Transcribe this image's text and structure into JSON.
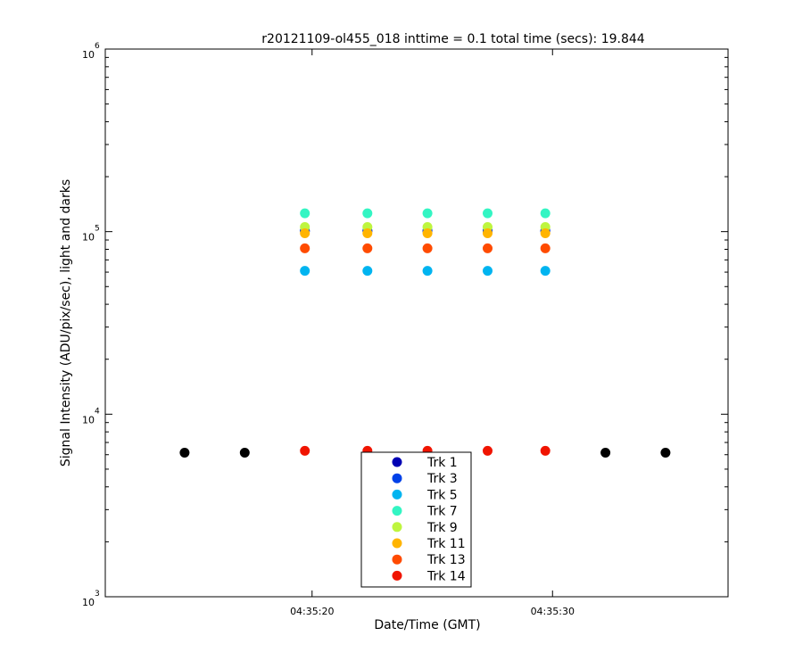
{
  "chart_data": {
    "type": "scatter",
    "title": "r20121109-ol455_018 inttime = 0.1 total time (secs): 19.844",
    "xlabel": "Date/Time (GMT)",
    "ylabel": "Signal Intensity (ADU/pix/sec), light and darks",
    "yscale": "log",
    "ylim": [
      1000,
      1000000
    ],
    "xlim_seconds_after_04_35_00": [
      11.4,
      37.3
    ],
    "x_ticks": [
      {
        "t": 20,
        "label": "04:35:20"
      },
      {
        "t": 30,
        "label": "04:35:30"
      }
    ],
    "y_ticks": [
      {
        "value": 1000,
        "base": "10",
        "exp": "3"
      },
      {
        "value": 10000,
        "base": "10",
        "exp": "4"
      },
      {
        "value": 100000,
        "base": "10",
        "exp": "5"
      },
      {
        "value": 1000000,
        "base": "10",
        "exp": "6"
      }
    ],
    "grid": false,
    "legend_position": "bottom-center",
    "series": [
      {
        "name": "Trk 1",
        "color": "#0000b4",
        "x": [
          19.7,
          22.3,
          24.8,
          27.3,
          29.7
        ],
        "y": [
          101000,
          101000,
          101000,
          101000,
          101000
        ]
      },
      {
        "name": "Trk 3",
        "color": "#0041e8",
        "x": [
          19.7,
          22.3,
          24.8,
          27.3,
          29.7
        ],
        "y": [
          101000,
          101000,
          101000,
          101000,
          101000
        ]
      },
      {
        "name": "Trk 5",
        "color": "#00b4f0",
        "x": [
          19.7,
          22.3,
          24.8,
          27.3,
          29.7
        ],
        "y": [
          61000,
          61000,
          61000,
          61000,
          61000
        ]
      },
      {
        "name": "Trk 7",
        "color": "#33f5c3",
        "x": [
          19.7,
          22.3,
          24.8,
          27.3,
          29.7
        ],
        "y": [
          126000,
          126000,
          126000,
          126000,
          126000
        ]
      },
      {
        "name": "Trk 9",
        "color": "#bef53f",
        "x": [
          19.7,
          22.3,
          24.8,
          27.3,
          29.7
        ],
        "y": [
          106000,
          106000,
          106000,
          106000,
          106000
        ]
      },
      {
        "name": "Trk 11",
        "color": "#ffb400",
        "x": [
          19.7,
          22.3,
          24.8,
          27.3,
          29.7
        ],
        "y": [
          98000,
          98000,
          98000,
          98000,
          98000
        ]
      },
      {
        "name": "Trk 13",
        "color": "#ff4b00",
        "x": [
          19.7,
          22.3,
          24.8,
          27.3,
          29.7
        ],
        "y": [
          81000,
          81000,
          81000,
          81000,
          81000
        ]
      },
      {
        "name": "Trk 14",
        "color": "#f01400",
        "x": [
          19.7,
          22.3,
          24.8,
          27.3,
          29.7
        ],
        "y": [
          6300,
          6300,
          6300,
          6300,
          6300
        ]
      },
      {
        "color": "#000000",
        "x": [
          14.7,
          17.2,
          32.2,
          34.7
        ],
        "y": [
          6150,
          6150,
          6150,
          6150
        ]
      }
    ]
  }
}
